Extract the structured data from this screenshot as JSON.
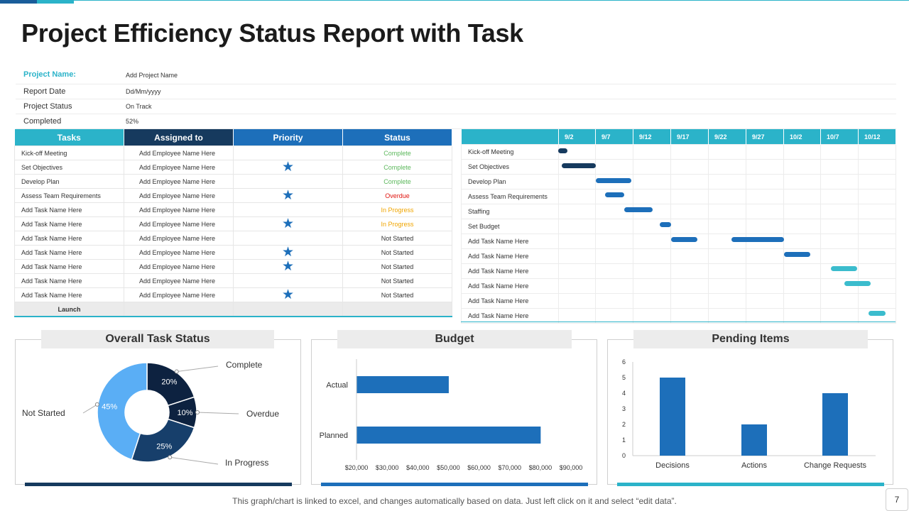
{
  "title": "Project Efficiency Status Report with Task",
  "info": [
    {
      "label": "Project Name:",
      "value": "Add Project Name"
    },
    {
      "label": "Report Date",
      "value": "Dd/Mm/yyyy"
    },
    {
      "label": "Project Status",
      "value": "On Track"
    },
    {
      "label": "Completed",
      "value": "52%"
    }
  ],
  "task_table": {
    "headers": [
      "Tasks",
      "Assigned to",
      "Priority",
      "Status"
    ],
    "rows": [
      {
        "task": "Kick-off Meeting",
        "assigned": "Add Employee Name Here",
        "priority": "",
        "status": "Complete"
      },
      {
        "task": "Set Objectives",
        "assigned": "Add Employee Name Here",
        "priority": "★",
        "status": "Complete"
      },
      {
        "task": "Develop Plan",
        "assigned": "Add Employee Name Here",
        "priority": "",
        "status": "Complete"
      },
      {
        "task": "Assess Team Requirements",
        "assigned": "Add Employee Name Here",
        "priority": "★",
        "status": "Overdue"
      },
      {
        "task": "Add Task Name Here",
        "assigned": "Add Employee Name Here",
        "priority": "",
        "status": "In Progress"
      },
      {
        "task": "Add Task Name Here",
        "assigned": "Add Employee Name Here",
        "priority": "★",
        "status": "In Progress"
      },
      {
        "task": "Add Task Name Here",
        "assigned": "Add Employee Name Here",
        "priority": "",
        "status": "Not Started"
      },
      {
        "task": "Add Task Name Here",
        "assigned": "Add Employee Name Here",
        "priority": "★",
        "status": "Not Started"
      },
      {
        "task": "Add Task Name Here",
        "assigned": "Add Employee Name Here",
        "priority": "★",
        "status": "Not Started"
      },
      {
        "task": "Add Task Name Here",
        "assigned": "Add Employee Name Here",
        "priority": "",
        "status": "Not Started"
      },
      {
        "task": "Add Task Name Here",
        "assigned": "Add Employee Name Here",
        "priority": "★",
        "status": "Not Started"
      }
    ],
    "launch_label": "Launch"
  },
  "status_colors": {
    "Complete": "#5cb85c",
    "Overdue": "#e0140f",
    "In Progress": "#f0a500",
    "Not Started": "#333333"
  },
  "gantt": {
    "dates": [
      "9/2",
      "9/7",
      "9/12",
      "9/17",
      "9/22",
      "9/27",
      "10/2",
      "10/7",
      "10/12"
    ],
    "tasks": [
      {
        "name": "Kick-off Meeting",
        "bars": [
          {
            "start": 0.0,
            "end": 0.25,
            "color": "#163a5e"
          }
        ]
      },
      {
        "name": "Set Objectives",
        "bars": [
          {
            "start": 0.1,
            "end": 1.0,
            "color": "#163a5e"
          }
        ]
      },
      {
        "name": "Develop Plan",
        "bars": [
          {
            "start": 1.0,
            "end": 1.95,
            "color": "#1d6fba"
          }
        ]
      },
      {
        "name": "Assess Team Requirements",
        "bars": [
          {
            "start": 1.25,
            "end": 1.75,
            "color": "#1d6fba"
          }
        ]
      },
      {
        "name": "Staffing",
        "bars": [
          {
            "start": 1.75,
            "end": 2.5,
            "color": "#1d6fba"
          }
        ]
      },
      {
        "name": "Set Budget",
        "bars": [
          {
            "start": 2.7,
            "end": 3.0,
            "color": "#1d6fba"
          }
        ]
      },
      {
        "name": "Add Task Name Here",
        "bars": [
          {
            "start": 3.0,
            "end": 3.7,
            "color": "#1d6fba"
          },
          {
            "start": 4.6,
            "end": 6.0,
            "color": "#1d6fba"
          }
        ]
      },
      {
        "name": "Add Task Name Here",
        "bars": [
          {
            "start": 6.0,
            "end": 6.7,
            "color": "#1d6fba"
          }
        ]
      },
      {
        "name": "Add Task Name Here",
        "bars": [
          {
            "start": 7.25,
            "end": 7.95,
            "color": "#3bbccd"
          }
        ]
      },
      {
        "name": "Add Task Name Here",
        "bars": [
          {
            "start": 7.6,
            "end": 8.3,
            "color": "#3bbccd"
          }
        ]
      },
      {
        "name": "Add Task Name Here",
        "bars": []
      },
      {
        "name": "Add Task Name Here",
        "bars": [
          {
            "start": 8.25,
            "end": 8.7,
            "color": "#3bbccd"
          }
        ]
      }
    ]
  },
  "panels": {
    "overall_task_status": {
      "title": "Overall Task Status"
    },
    "budget": {
      "title": "Budget"
    },
    "pending_items": {
      "title": "Pending Items"
    }
  },
  "chart_data": [
    {
      "type": "pie",
      "title": "Overall Task Status",
      "categories": [
        "Complete",
        "Overdue",
        "In Progress",
        "Not Started"
      ],
      "values": [
        20,
        10,
        25,
        45
      ],
      "value_labels": [
        "20%",
        "10%",
        "25%",
        "45%"
      ],
      "colors": [
        "#0d2240",
        "#0d2240",
        "#173f6b",
        "#5aaef5"
      ]
    },
    {
      "type": "bar",
      "orientation": "horizontal",
      "title": "Budget",
      "categories": [
        "Actual",
        "Planned"
      ],
      "values": [
        50000,
        80000
      ],
      "xlim": [
        20000,
        90000
      ],
      "tick_values": [
        20000,
        30000,
        40000,
        50000,
        60000,
        70000,
        80000,
        90000
      ],
      "tick_labels": [
        "$20,000",
        "$30,000",
        "$40,000",
        "$50,000",
        "$60,000",
        "$70,000",
        "$80,000",
        "$90,000"
      ]
    },
    {
      "type": "bar",
      "title": "Pending Items",
      "categories": [
        "Decisions",
        "Actions",
        "Change Requests"
      ],
      "values": [
        5,
        2,
        4
      ],
      "ylim": [
        0,
        6
      ],
      "tick_labels": [
        "0",
        "1",
        "2",
        "3",
        "4",
        "5",
        "6"
      ]
    }
  ],
  "footer": "This graph/chart is linked to excel, and changes automatically based on data. Just left click on it and select “edit data”.",
  "page_number": "7"
}
